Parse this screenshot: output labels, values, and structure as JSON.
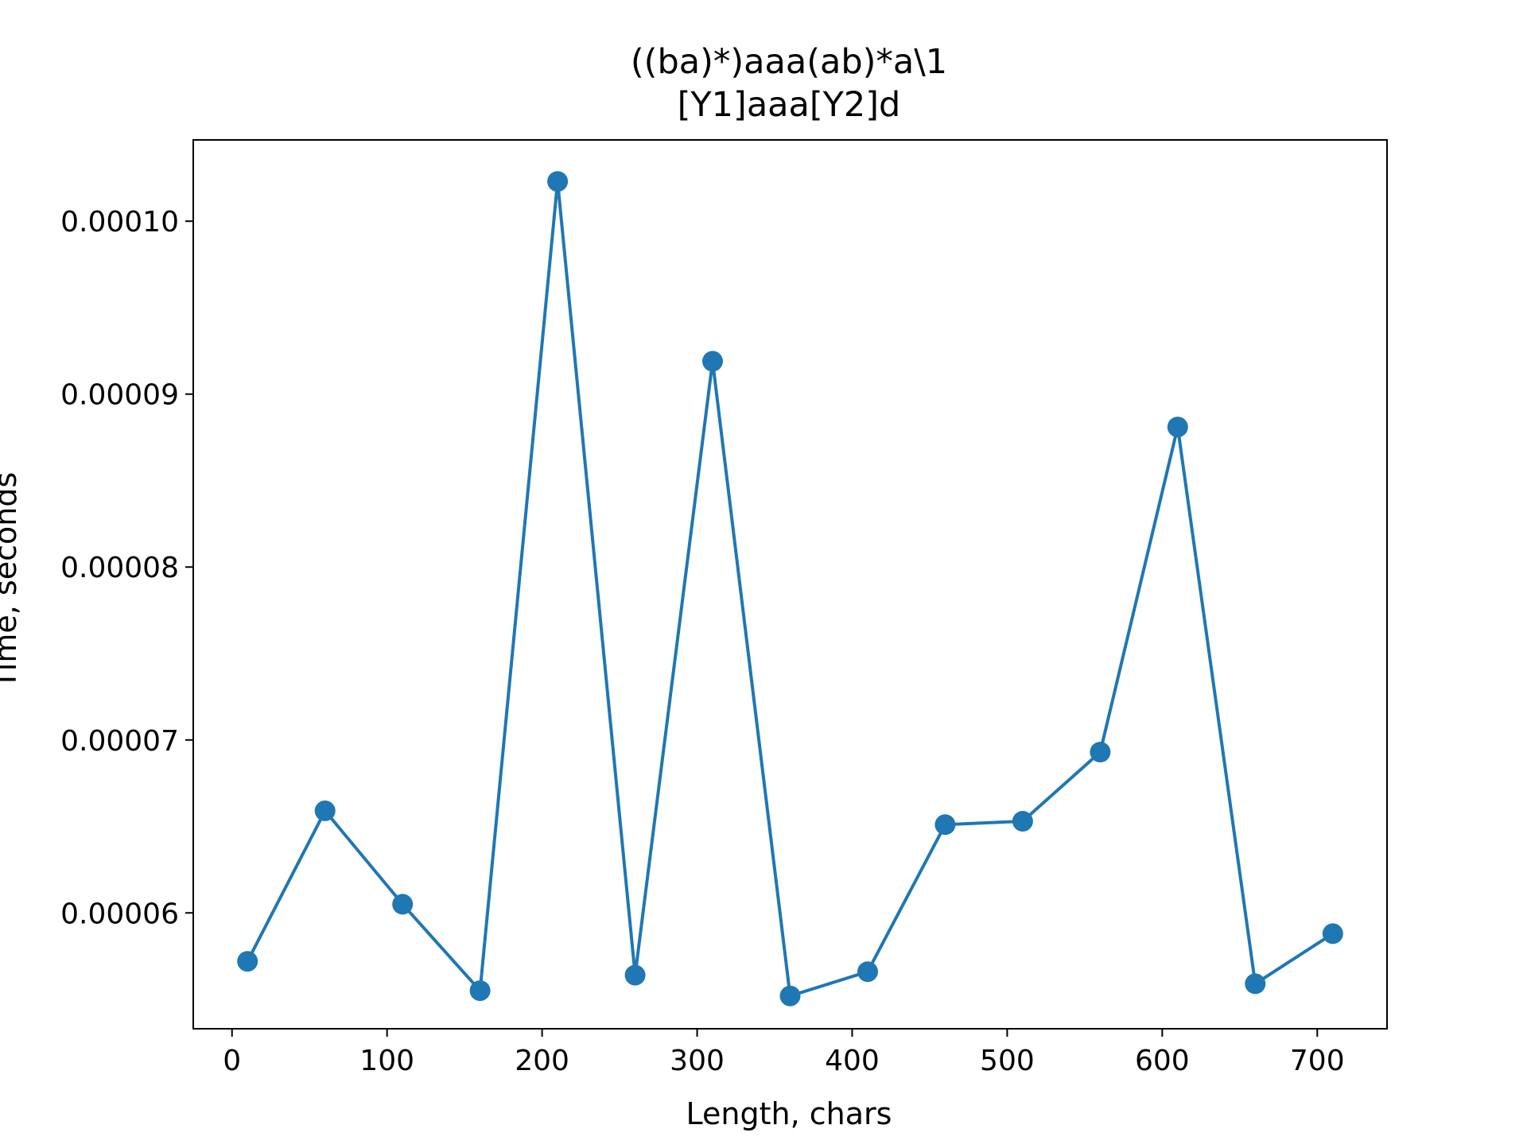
{
  "chart_data": {
    "type": "line",
    "title": "((ba)*)aaa(ab)*a\\1",
    "subtitle": "[Y1]aaa[Y2]d",
    "xlabel": "Length, chars",
    "ylabel": "Time, seconds",
    "x": [
      10,
      60,
      110,
      160,
      210,
      260,
      310,
      360,
      410,
      460,
      510,
      560,
      610,
      660,
      710
    ],
    "series": [
      {
        "values": [
          5.72e-05,
          6.59e-05,
          6.05e-05,
          5.55e-05,
          0.0001023,
          5.64e-05,
          9.19e-05,
          5.52e-05,
          5.66e-05,
          6.51e-05,
          6.53e-05,
          6.93e-05,
          8.81e-05,
          5.59e-05,
          5.88e-05
        ]
      }
    ],
    "xlim": [
      -25,
      745
    ],
    "ylim": [
      5.33e-05,
      0.0001047
    ],
    "xticks": [
      0,
      100,
      200,
      300,
      400,
      500,
      600,
      700
    ],
    "xtick_labels": [
      "0",
      "100",
      "200",
      "300",
      "400",
      "500",
      "600",
      "700"
    ],
    "yticks": [
      6e-05,
      7e-05,
      8e-05,
      9e-05,
      0.0001
    ],
    "ytick_labels": [
      "0.00006",
      "0.00007",
      "0.00008",
      "0.00009",
      "0.00010"
    ],
    "grid": false,
    "legend": false,
    "colors": {
      "line": "#1f77b4",
      "axes": "#000000",
      "background": "#ffffff"
    }
  }
}
